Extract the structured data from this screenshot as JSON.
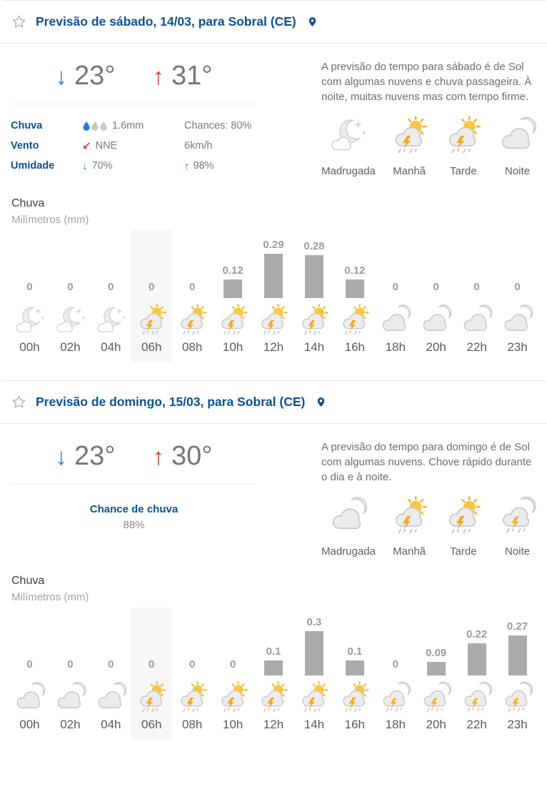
{
  "colors": {
    "accent_blue": "#0b5190",
    "arrow_blue": "#1a82e2",
    "arrow_red": "#e03a34",
    "bar_gray": "#ababab",
    "highlight_bg": "#f7f7f7"
  },
  "days": [
    {
      "header": {
        "title": "Previsão de sábado, 14/03, para Sobral (CE)",
        "star_icon": "star-outline",
        "pin_icon": "location-pin"
      },
      "temps": {
        "min": "23°",
        "max": "31°",
        "min_icon": "arrow-down",
        "max_icon": "arrow-up"
      },
      "details": [
        {
          "label": "Chuva",
          "icon": "rain-drops",
          "value": "1.6mm",
          "extra": "Chances: 80%"
        },
        {
          "label": "Vento",
          "icon": "arrow-down-left",
          "value": "NNE",
          "extra": "6km/h"
        },
        {
          "label": "Umidade",
          "icon": "arrow-down-small",
          "value": "70%",
          "extra_icon": "arrow-up-small",
          "extra": "98%"
        }
      ],
      "summary": "A previsão do tempo para sábado é de Sol com algumas nuvens e chuva passageira. À noite, muitas nuvens mas com tempo firme.",
      "periods": [
        {
          "label": "Madrugada",
          "icon": "moon-stars-cloud"
        },
        {
          "label": "Manhã",
          "icon": "storm-sun"
        },
        {
          "label": "Tarde",
          "icon": "storm-sun"
        },
        {
          "label": "Noite",
          "icon": "cloud-moon"
        }
      ]
    },
    {
      "header": {
        "title": "Previsão de domingo, 15/03, para Sobral (CE)",
        "star_icon": "star-outline",
        "pin_icon": "location-pin"
      },
      "temps": {
        "min": "23°",
        "max": "30°",
        "min_icon": "arrow-down",
        "max_icon": "arrow-up"
      },
      "chance": {
        "label": "Chance de chuva",
        "value": "88%"
      },
      "summary": "A previsão do tempo para domingo é de Sol com algumas nuvens. Chove rápido durante o dia e à noite.",
      "periods": [
        {
          "label": "Madrugada",
          "icon": "cloud-moon"
        },
        {
          "label": "Manhã",
          "icon": "storm-sun"
        },
        {
          "label": "Tarde",
          "icon": "storm-sun"
        },
        {
          "label": "Noite",
          "icon": "storm-moon"
        }
      ]
    }
  ],
  "chart_data": [
    {
      "type": "bar",
      "title": "Chuva",
      "ylabel": "Milímetros (mm)",
      "categories": [
        "00h",
        "02h",
        "04h",
        "06h",
        "08h",
        "10h",
        "12h",
        "14h",
        "16h",
        "18h",
        "20h",
        "22h",
        "23h"
      ],
      "values": [
        0,
        0,
        0,
        0,
        0,
        0.12,
        0.29,
        0.28,
        0.12,
        0,
        0,
        0,
        0
      ],
      "icons": [
        "moon-stars-cloud",
        "moon-stars-cloud",
        "moon-stars-cloud",
        "storm-sun",
        "storm-sun",
        "storm-sun",
        "storm-sun",
        "storm-sun",
        "storm-sun",
        "cloud-moon",
        "cloud-moon",
        "cloud-moon",
        "cloud-moon"
      ],
      "highlight_index": 3,
      "bar_color": "#ababab",
      "grid": false,
      "legend": "none"
    },
    {
      "type": "bar",
      "title": "Chuva",
      "ylabel": "Milímetros (mm)",
      "categories": [
        "00h",
        "02h",
        "04h",
        "06h",
        "08h",
        "10h",
        "12h",
        "14h",
        "16h",
        "18h",
        "20h",
        "22h",
        "23h"
      ],
      "values": [
        0,
        0,
        0,
        0,
        0,
        0,
        0.1,
        0.3,
        0.1,
        0,
        0.09,
        0.22,
        0.27
      ],
      "icons": [
        "cloud-moon",
        "cloud-moon",
        "cloud-moon",
        "storm-sun",
        "storm-sun",
        "storm-sun",
        "storm-sun",
        "storm-sun",
        "storm-sun",
        "storm-moon",
        "storm-moon",
        "storm-moon",
        "storm-moon"
      ],
      "highlight_index": 3,
      "bar_color": "#ababab",
      "grid": false,
      "legend": "none"
    }
  ]
}
